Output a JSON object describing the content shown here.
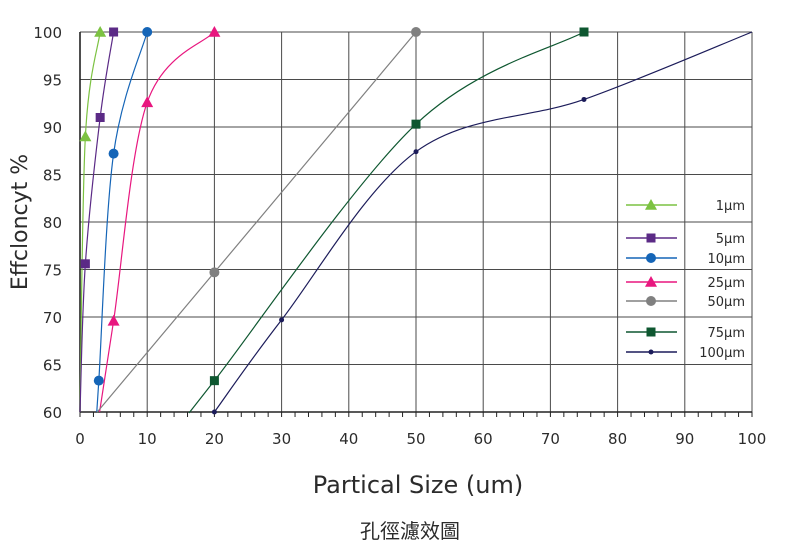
{
  "chart_data": {
    "type": "line",
    "title": "",
    "xlabel": "Partical Size (um)",
    "ylabel": "Effcloncyt %",
    "caption": "孔徑濾效圖",
    "xlim": [
      0,
      100
    ],
    "ylim": [
      60,
      100
    ],
    "x_ticks": [
      "0",
      "10",
      "20",
      "30",
      "40",
      "50",
      "60",
      "70",
      "80",
      "90",
      "100"
    ],
    "y_ticks": [
      "60",
      "65",
      "70",
      "75",
      "80",
      "85",
      "90",
      "95",
      "100"
    ],
    "grid": true,
    "legend_position": "right",
    "series": [
      {
        "name": "1μm",
        "color": "#7cc242",
        "marker": "triangle",
        "x": [
          0.8,
          3
        ],
        "y": [
          89,
          100
        ]
      },
      {
        "name": "5μm",
        "color": "#5b2a86",
        "marker": "square",
        "x": [
          0.8,
          3,
          5
        ],
        "y": [
          75.6,
          91,
          100
        ]
      },
      {
        "name": "10μm",
        "color": "#1565b7",
        "marker": "circle",
        "x": [
          2.8,
          5,
          10
        ],
        "y": [
          63.3,
          87.2,
          100
        ]
      },
      {
        "name": "25μm",
        "color": "#e8177f",
        "marker": "triangle",
        "x": [
          5,
          10,
          20
        ],
        "y": [
          69.6,
          92.6,
          100
        ]
      },
      {
        "name": "50μm",
        "color": "#808080",
        "marker": "circle",
        "x": [
          20,
          50
        ],
        "y": [
          74.7,
          100
        ]
      },
      {
        "name": "75μm",
        "color": "#0e5730",
        "marker": "square",
        "x": [
          20,
          50,
          75
        ],
        "y": [
          63.3,
          90.3,
          100
        ]
      },
      {
        "name": "100μm",
        "color": "#1c1c5a",
        "marker": "dot",
        "x": [
          20,
          30,
          50,
          75
        ],
        "y": [
          60,
          69.7,
          87.4,
          92.9
        ]
      }
    ]
  }
}
